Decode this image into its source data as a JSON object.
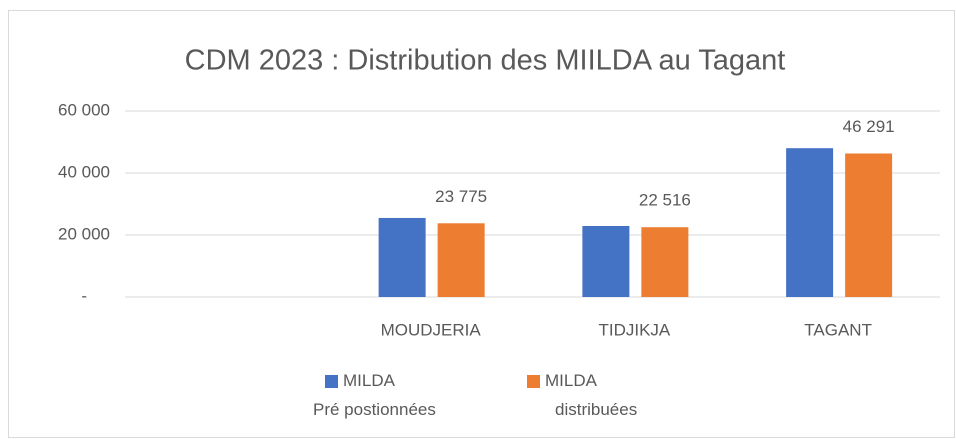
{
  "chart_data": {
    "type": "bar",
    "title": "CDM 2023 : Distribution des MIILDA au Tagant",
    "categories": [
      null,
      "MOUDJERIA",
      "TIDJIKJA",
      "TAGANT"
    ],
    "series": [
      {
        "name": "MILDA Pré postionnées",
        "color": "#4472c4",
        "values": [
          null,
          25500,
          22900,
          48000
        ]
      },
      {
        "name": "MILDA distribuées",
        "color": "#ed7d31",
        "values": [
          null,
          23775,
          22516,
          46291
        ],
        "value_labels": [
          null,
          "23 775",
          "22 516",
          "46 291"
        ]
      }
    ],
    "ylim": [
      0,
      60000
    ],
    "yticks": [
      {
        "value": 0,
        "label": "-"
      },
      {
        "value": 20000,
        "label": "20 000"
      },
      {
        "value": 40000,
        "label": "40 000"
      },
      {
        "value": 60000,
        "label": "60 000"
      }
    ],
    "grid": true
  }
}
